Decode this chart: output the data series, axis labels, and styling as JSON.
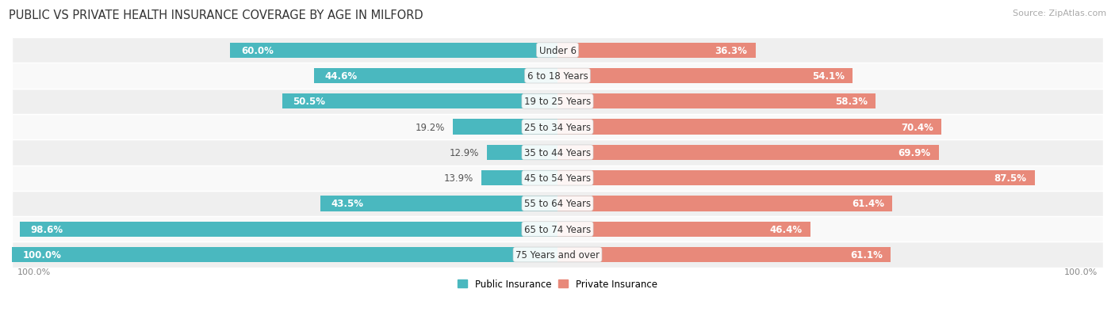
{
  "title": "PUBLIC VS PRIVATE HEALTH INSURANCE COVERAGE BY AGE IN MILFORD",
  "source": "Source: ZipAtlas.com",
  "categories": [
    "Under 6",
    "6 to 18 Years",
    "19 to 25 Years",
    "25 to 34 Years",
    "35 to 44 Years",
    "45 to 54 Years",
    "55 to 64 Years",
    "65 to 74 Years",
    "75 Years and over"
  ],
  "public_values": [
    60.0,
    44.6,
    50.5,
    19.2,
    12.9,
    13.9,
    43.5,
    98.6,
    100.0
  ],
  "private_values": [
    36.3,
    54.1,
    58.3,
    70.4,
    69.9,
    87.5,
    61.4,
    46.4,
    61.1
  ],
  "public_color": "#4ab8bf",
  "private_color": "#e8897a",
  "row_bg_even": "#efefef",
  "row_bg_odd": "#f9f9f9",
  "max_value": 100.0,
  "label_fontsize": 8.5,
  "title_fontsize": 10.5,
  "source_fontsize": 8.0,
  "legend_fontsize": 8.5,
  "axis_label_fontsize": 8.0,
  "background_color": "#ffffff",
  "bar_height": 0.6
}
